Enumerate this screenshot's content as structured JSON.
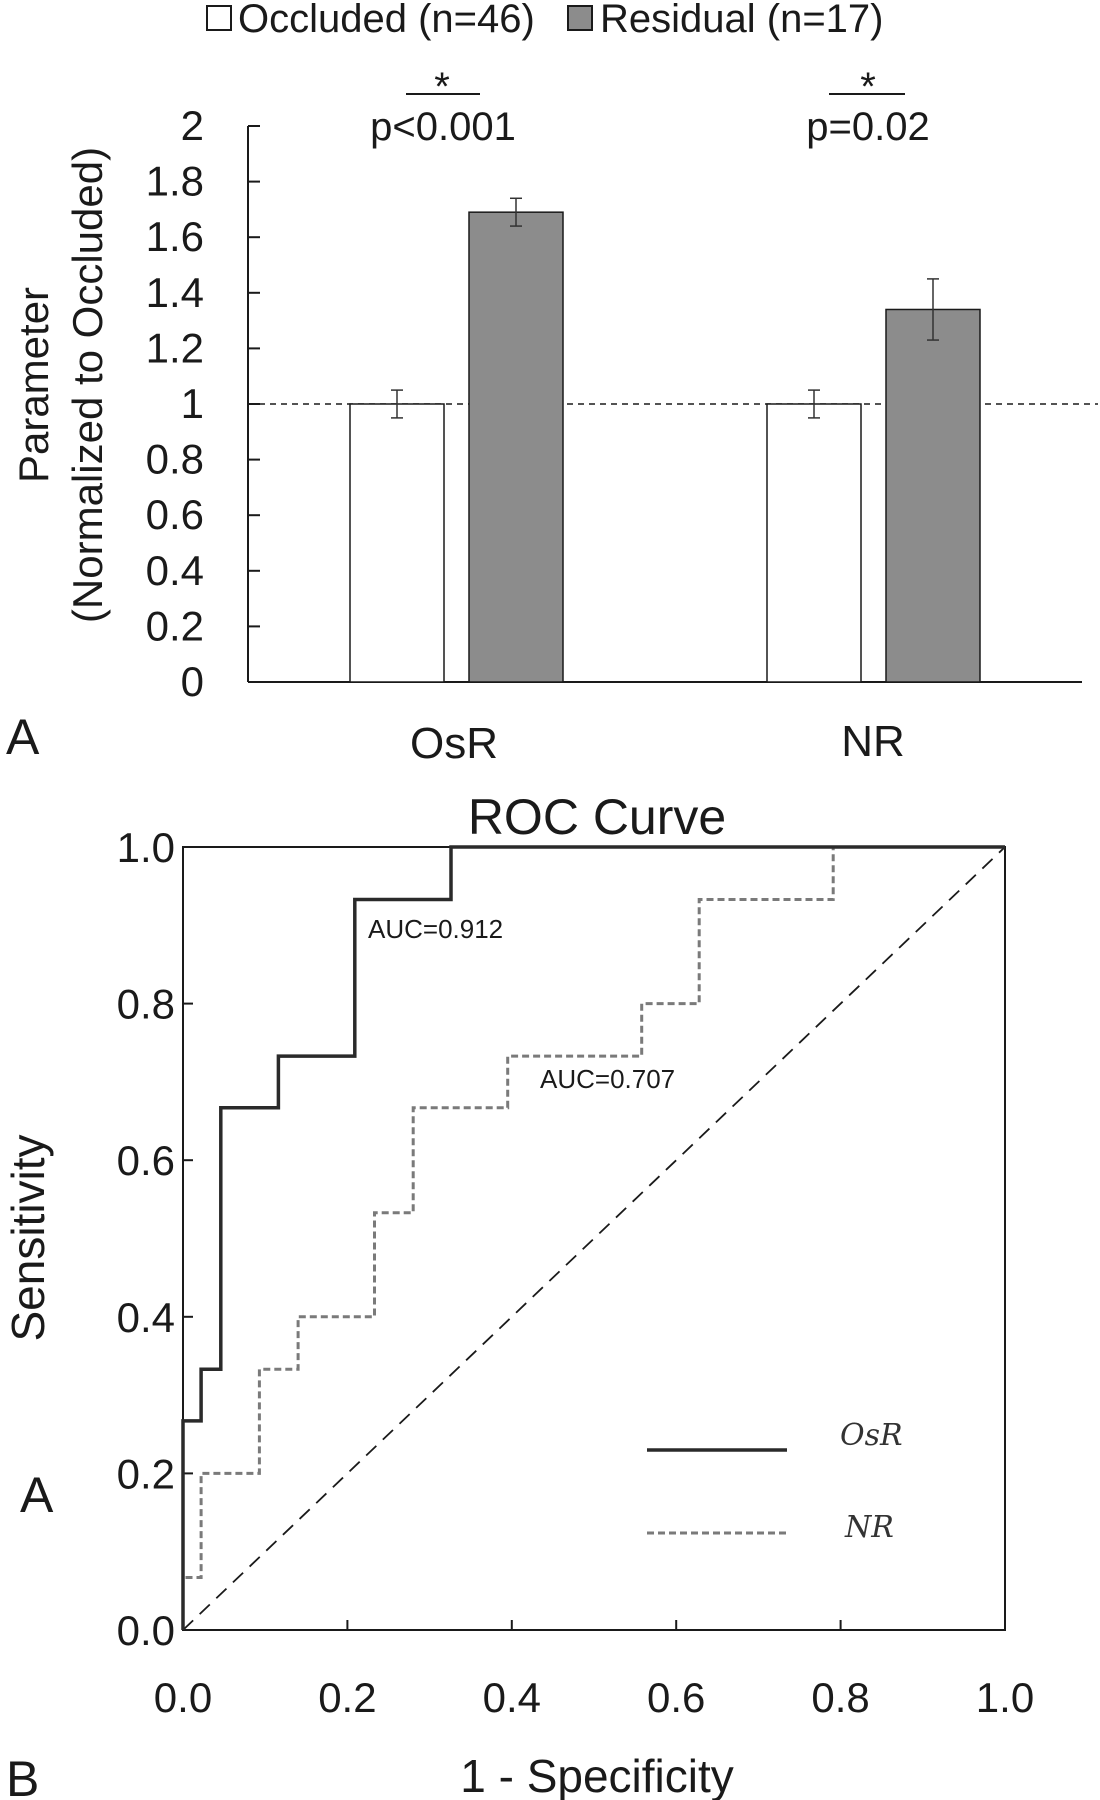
{
  "panels": {
    "top": "A",
    "middle": "A",
    "bottom": "B"
  },
  "chart_data": [
    {
      "type": "bar",
      "title": "",
      "ylabel_line1": "Parameter",
      "ylabel_line2": "(Normalized to Occluded)",
      "categories": [
        "OsR",
        "NR"
      ],
      "series": [
        {
          "name": "Occluded (n=46)",
          "color": "#ffffff",
          "values": [
            1.0,
            1.0
          ],
          "errors": [
            0.05,
            0.05
          ]
        },
        {
          "name": "Residual (n=17)",
          "color": "#8c8c8c",
          "values": [
            1.69,
            1.34
          ],
          "errors": [
            0.05,
            0.11
          ]
        }
      ],
      "ylim": [
        0,
        2
      ],
      "yticks": [
        "0",
        "0.2",
        "0.4",
        "0.6",
        "0.8",
        "1",
        "1.2",
        "1.4",
        "1.6",
        "1.8",
        "2"
      ],
      "reference_line": 1,
      "significance": [
        {
          "category": "OsR",
          "star": "*",
          "label": "p<0.001"
        },
        {
          "category": "NR",
          "star": "*",
          "label": "p=0.02"
        }
      ],
      "legend_position": "top"
    },
    {
      "type": "line",
      "title": "ROC Curve",
      "xlabel": "1 - Specificity",
      "ylabel": "Sensitivity",
      "xlim": [
        0,
        1
      ],
      "ylim": [
        0,
        1
      ],
      "xticks": [
        "0.0",
        "0.2",
        "0.4",
        "0.6",
        "0.8",
        "1.0"
      ],
      "yticks": [
        "0.0",
        "0.2",
        "0.4",
        "0.6",
        "0.8",
        "1.0"
      ],
      "series": [
        {
          "name": "OsR",
          "style": "solid",
          "auc_label": "AUC=0.912",
          "points": [
            [
              0,
              0
            ],
            [
              0,
              0.267
            ],
            [
              0.022,
              0.267
            ],
            [
              0.022,
              0.333
            ],
            [
              0.046,
              0.333
            ],
            [
              0.046,
              0.667
            ],
            [
              0.116,
              0.667
            ],
            [
              0.116,
              0.733
            ],
            [
              0.209,
              0.733
            ],
            [
              0.209,
              0.933
            ],
            [
              0.326,
              0.933
            ],
            [
              0.326,
              1.0
            ],
            [
              1.0,
              1.0
            ]
          ]
        },
        {
          "name": "NR",
          "style": "dashed",
          "auc_label": "AUC=0.707",
          "points": [
            [
              0,
              0
            ],
            [
              0,
              0.067
            ],
            [
              0.022,
              0.067
            ],
            [
              0.022,
              0.2
            ],
            [
              0.093,
              0.2
            ],
            [
              0.093,
              0.333
            ],
            [
              0.14,
              0.333
            ],
            [
              0.14,
              0.4
            ],
            [
              0.233,
              0.4
            ],
            [
              0.233,
              0.533
            ],
            [
              0.28,
              0.533
            ],
            [
              0.28,
              0.667
            ],
            [
              0.395,
              0.667
            ],
            [
              0.395,
              0.733
            ],
            [
              0.558,
              0.733
            ],
            [
              0.558,
              0.8
            ],
            [
              0.628,
              0.8
            ],
            [
              0.628,
              0.933
            ],
            [
              0.791,
              0.933
            ],
            [
              0.791,
              1.0
            ],
            [
              1.0,
              1.0
            ]
          ]
        }
      ],
      "reference_diagonal": true,
      "legend_position": "bottom-right"
    }
  ]
}
